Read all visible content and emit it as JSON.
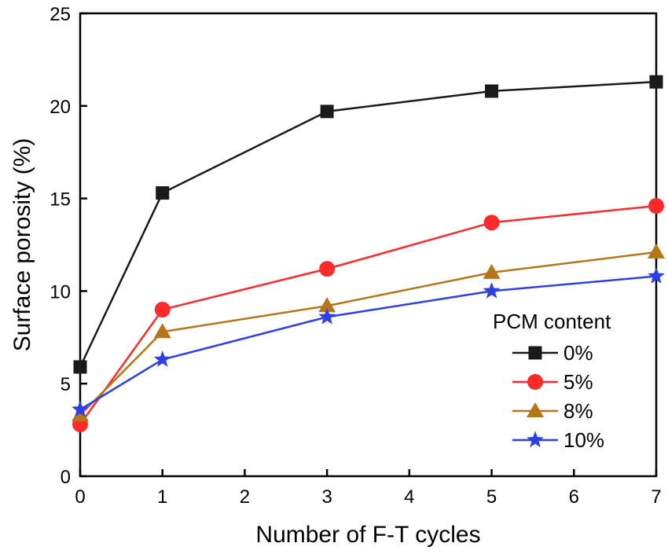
{
  "chart_data": {
    "type": "line",
    "xlabel": "Number of F-T cycles",
    "ylabel": "Surface porosity (%)",
    "xlim": [
      0,
      7
    ],
    "ylim": [
      0,
      25
    ],
    "x_ticks": [
      0,
      1,
      2,
      3,
      4,
      5,
      6,
      7
    ],
    "y_ticks": [
      0,
      5,
      10,
      15,
      20,
      25
    ],
    "x": [
      0,
      1,
      3,
      5,
      7
    ],
    "grid": false,
    "legend": {
      "title": "PCM content",
      "placement": "bottom-right"
    },
    "series": [
      {
        "name": "0%",
        "color": "#1a1a1a",
        "marker": "square",
        "values": [
          5.9,
          15.3,
          19.7,
          20.8,
          21.3
        ]
      },
      {
        "name": "5%",
        "color": "#ff2a2a",
        "marker": "circle",
        "values": [
          2.8,
          9.0,
          11.2,
          13.7,
          14.6
        ]
      },
      {
        "name": "8%",
        "color": "#b5761b",
        "marker": "triangle",
        "values": [
          3.3,
          7.8,
          9.2,
          11.0,
          12.1
        ]
      },
      {
        "name": "10%",
        "color": "#2d3fe6",
        "marker": "star",
        "values": [
          3.6,
          6.3,
          8.6,
          10.0,
          10.8
        ]
      }
    ]
  }
}
